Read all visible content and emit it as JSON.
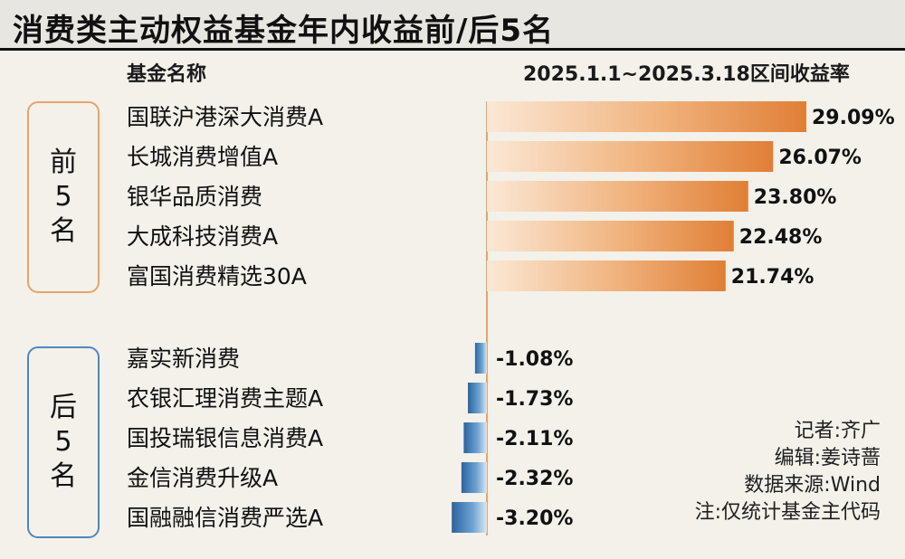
{
  "title": "消费类主动权益基金年内收益前/后5名",
  "header": {
    "name_col": "基金名称",
    "value_col": "2025.1.1~2025.3.18区间收益率"
  },
  "groups": {
    "top": [
      "前",
      "5",
      "名"
    ],
    "bottom": [
      "后",
      "5",
      "名"
    ]
  },
  "credits": {
    "reporter": "记者:齐广",
    "editor": "编辑:姜诗蔷",
    "source": "数据来源:Wind",
    "note": "注:仅统计基金主代码"
  },
  "colors": {
    "positive_bar": "#e8873f",
    "negative_bar": "#2f6ea6",
    "top_box_border": "#e8a36a",
    "bottom_box_border": "#4f87bb",
    "axis_line": "#e8a36a"
  },
  "chart_data": {
    "type": "bar",
    "orientation": "horizontal",
    "unit": "%",
    "categories": [
      "国联沪港深大消费A",
      "长城消费增值A",
      "银华品质消费",
      "大成科技消费A",
      "富国消费精选30A",
      "嘉实新消费",
      "农银汇理消费主题A",
      "国投瑞银信息消费A",
      "金信消费升级A",
      "国融融信消费严选A"
    ],
    "values": [
      29.09,
      26.07,
      23.8,
      22.48,
      21.74,
      -1.08,
      -1.73,
      -2.11,
      -2.32,
      -3.2
    ],
    "labels": [
      "29.09%",
      "26.07%",
      "23.80%",
      "22.48%",
      "21.74%",
      "-1.08%",
      "-1.73%",
      "-2.11%",
      "-2.32%",
      "-3.20%"
    ],
    "groups": [
      {
        "name": "前5名",
        "indices": [
          0,
          1,
          2,
          3,
          4
        ]
      },
      {
        "name": "后5名",
        "indices": [
          5,
          6,
          7,
          8,
          9
        ]
      }
    ]
  }
}
